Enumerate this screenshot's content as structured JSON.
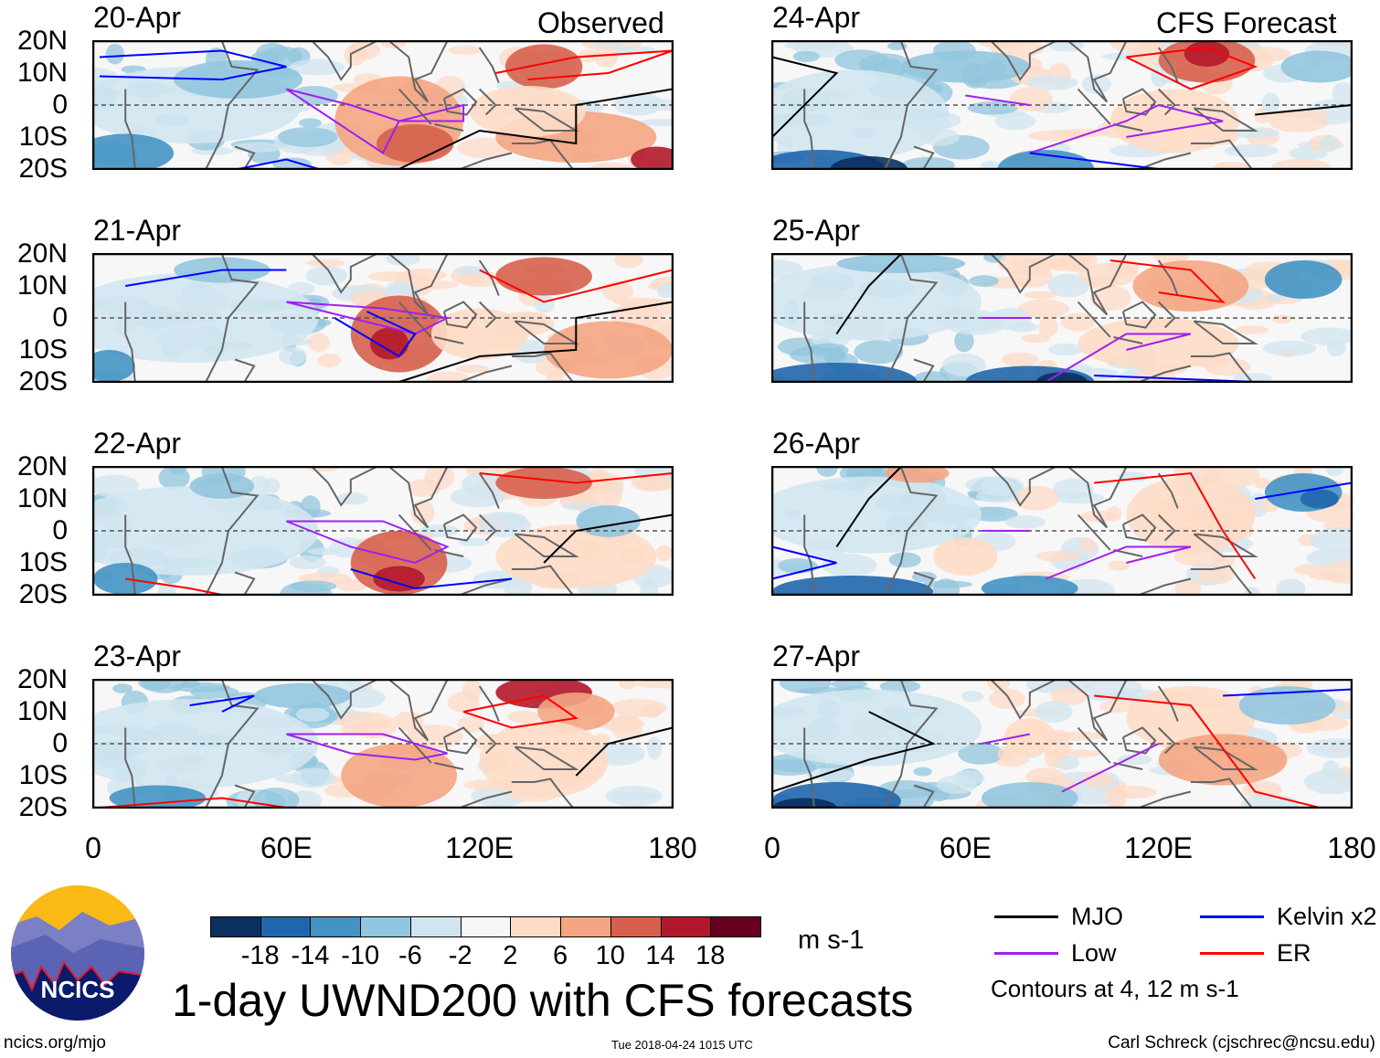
{
  "chart_data": {
    "type": "heatmap",
    "title": "1-day UWND200 with CFS forecasts",
    "units": "m s-1",
    "left_column_label": "Observed",
    "right_column_label": "CFS Forecast",
    "panels": [
      {
        "date": "20-Apr",
        "column": "Observed"
      },
      {
        "date": "21-Apr",
        "column": "Observed"
      },
      {
        "date": "22-Apr",
        "column": "Observed"
      },
      {
        "date": "23-Apr",
        "column": "Observed"
      },
      {
        "date": "24-Apr",
        "column": "CFS Forecast"
      },
      {
        "date": "25-Apr",
        "column": "CFS Forecast"
      },
      {
        "date": "26-Apr",
        "column": "CFS Forecast"
      },
      {
        "date": "27-Apr",
        "column": "CFS Forecast"
      }
    ],
    "lat_ticks": [
      "20N",
      "10N",
      "0",
      "10S",
      "20S"
    ],
    "lon_ticks": [
      "0",
      "60E",
      "120E",
      "180"
    ],
    "lat_range": [
      -20,
      20
    ],
    "lon_range": [
      0,
      180
    ],
    "colorbar": {
      "levels": [
        "-18",
        "-14",
        "-10",
        "-6",
        "-2",
        "2",
        "6",
        "10",
        "14",
        "18"
      ],
      "colors": [
        "#0b2f5f",
        "#2066ac",
        "#4393c3",
        "#92c5de",
        "#d1e5f0",
        "#f7f7f7",
        "#fddbc7",
        "#f4a582",
        "#d6604d",
        "#b2182b",
        "#67001f"
      ]
    },
    "legend": [
      {
        "label": "MJO",
        "color": "#000000"
      },
      {
        "label": "Kelvin x2",
        "color": "#0000ff"
      },
      {
        "label": "Low",
        "color": "#a020f0"
      },
      {
        "label": "ER",
        "color": "#ff0000"
      }
    ],
    "contour_note": "Contours at 4, 12 m s-1"
  },
  "footer": {
    "logo_text": "NCICS",
    "url": "ncics.org/mjo",
    "timestamp": "Tue 2018-04-24 1015 UTC",
    "author": "Carl Schreck (cjschrec@ncsu.edu)"
  }
}
